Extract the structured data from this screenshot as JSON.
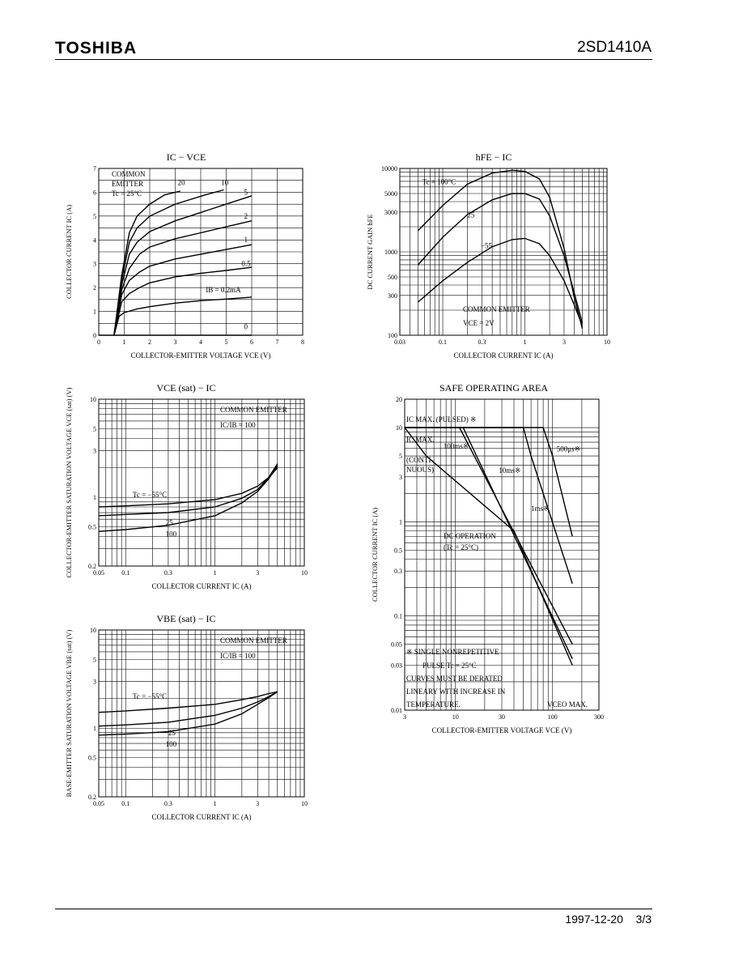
{
  "header": {
    "brand": "TOSHIBA",
    "part_number": "2SD1410A"
  },
  "footer": {
    "date": "1997-12-20",
    "page": "3/3"
  },
  "chart_data": [
    {
      "id": "ic-vce",
      "type": "line",
      "title": "IC − VCE",
      "xlabel": "COLLECTOR-EMITTER VOLTAGE   VCE   (V)",
      "ylabel": "COLLECTOR CURRENT   IC   (A)",
      "xscale": "linear",
      "yscale": "linear",
      "xlim": [
        0,
        8
      ],
      "ylim": [
        0,
        7
      ],
      "xticks": [
        0,
        1,
        2,
        3,
        4,
        5,
        6,
        7,
        8
      ],
      "yticks": [
        0,
        1,
        2,
        3,
        4,
        5,
        6,
        7
      ],
      "grid": true,
      "annotations": [
        "COMMON",
        "EMITTER",
        "Tc = 25°C"
      ],
      "series": [
        {
          "name": "20",
          "x": [
            0.6,
            0.9,
            1.2,
            1.5,
            2.0,
            2.6,
            3.2
          ],
          "y": [
            0,
            2.5,
            4.3,
            5.0,
            5.5,
            5.9,
            6.05
          ]
        },
        {
          "name": "10",
          "x": [
            0.6,
            0.9,
            1.2,
            1.5,
            2.0,
            3.0,
            4.2,
            4.9
          ],
          "y": [
            0,
            2.3,
            3.9,
            4.5,
            5.0,
            5.5,
            5.9,
            6.1
          ]
        },
        {
          "name": "5",
          "x": [
            0.6,
            0.9,
            1.2,
            1.5,
            2.0,
            3.0,
            4.0,
            5.0,
            6.0
          ],
          "y": [
            0,
            2.1,
            3.4,
            3.9,
            4.35,
            4.8,
            5.15,
            5.5,
            5.85
          ]
        },
        {
          "name": "2",
          "x": [
            0.6,
            0.9,
            1.2,
            1.6,
            2.0,
            3.0,
            4.0,
            5.0,
            6.0
          ],
          "y": [
            0,
            1.9,
            2.8,
            3.4,
            3.7,
            4.05,
            4.3,
            4.55,
            4.8
          ]
        },
        {
          "name": "1",
          "x": [
            0.6,
            0.9,
            1.2,
            1.6,
            2.0,
            3.0,
            4.0,
            5.0,
            6.0
          ],
          "y": [
            0,
            1.7,
            2.3,
            2.65,
            2.9,
            3.2,
            3.4,
            3.6,
            3.8
          ]
        },
        {
          "name": "0.5",
          "x": [
            0.6,
            0.9,
            1.2,
            1.6,
            2.0,
            3.0,
            4.0,
            5.0,
            6.0
          ],
          "y": [
            0,
            1.4,
            1.75,
            2.0,
            2.2,
            2.45,
            2.6,
            2.72,
            2.85
          ]
        },
        {
          "name": "IB = 0.2mA",
          "x": [
            0.6,
            0.8,
            1.0,
            1.5,
            2.0,
            3.0,
            4.0,
            5.0,
            6.0
          ],
          "y": [
            0,
            0.8,
            0.95,
            1.1,
            1.2,
            1.35,
            1.45,
            1.52,
            1.6
          ]
        },
        {
          "name": "0",
          "x": [
            0,
            6
          ],
          "y": [
            0,
            0
          ]
        }
      ]
    },
    {
      "id": "hfe-ic",
      "type": "line",
      "title": "hFE − IC",
      "xlabel": "COLLECTOR CURRENT   IC   (A)",
      "ylabel": "DC CURRENT GAIN   hFE",
      "xscale": "log",
      "yscale": "log",
      "xlim": [
        0.03,
        10
      ],
      "ylim": [
        100,
        10000
      ],
      "xticks": [
        0.03,
        0.1,
        0.3,
        1,
        3,
        10
      ],
      "xtick_labels": [
        "0.03",
        "0.1",
        "0.3",
        "1",
        "3",
        "10"
      ],
      "yticks": [
        100,
        300,
        500,
        1000,
        3000,
        5000,
        10000
      ],
      "ytick_labels": [
        "100",
        "300",
        "500",
        "1000",
        "3000",
        "5000",
        "10000"
      ],
      "grid": true,
      "annotations": [
        "COMMON EMITTER",
        "VCE = 2V"
      ],
      "series": [
        {
          "name": "Tc = 100°C",
          "x": [
            0.05,
            0.1,
            0.2,
            0.4,
            0.7,
            1.0,
            1.5,
            2.0,
            3.0,
            4.0,
            5.0
          ],
          "y": [
            1800,
            3600,
            6500,
            8800,
            9500,
            9200,
            7500,
            4500,
            1100,
            280,
            120
          ]
        },
        {
          "name": "25",
          "x": [
            0.05,
            0.1,
            0.2,
            0.4,
            0.7,
            1.0,
            1.5,
            2.0,
            3.0,
            4.0,
            5.0
          ],
          "y": [
            700,
            1500,
            2800,
            4200,
            5000,
            5000,
            4300,
            2700,
            900,
            320,
            140
          ]
        },
        {
          "name": "−55",
          "x": [
            0.05,
            0.1,
            0.2,
            0.4,
            0.7,
            1.0,
            1.5,
            2.0,
            3.0,
            4.0,
            5.0
          ],
          "y": [
            250,
            450,
            750,
            1150,
            1400,
            1450,
            1250,
            900,
            450,
            230,
            130
          ]
        }
      ]
    },
    {
      "id": "vcesat-ic",
      "type": "line",
      "title": "VCE (sat) − IC",
      "xlabel": "COLLECTOR CURRENT   IC   (A)",
      "ylabel": "COLLECTOR-EMITTER SATURATION VOLTAGE   VCE (sat)   (V)",
      "xscale": "log",
      "yscale": "log",
      "xlim": [
        0.05,
        10
      ],
      "ylim": [
        0.2,
        10
      ],
      "xticks": [
        0.05,
        0.1,
        0.3,
        1,
        3,
        10
      ],
      "xtick_labels": [
        "0.05",
        "0.1",
        "0.3",
        "1",
        "3",
        "10"
      ],
      "yticks": [
        0.2,
        0.5,
        1,
        3,
        5,
        10
      ],
      "ytick_labels": [
        "0.2",
        "0.5",
        "1",
        "3",
        "5",
        "10"
      ],
      "grid": true,
      "annotations": [
        "COMMON EMITTER",
        "IC/IB = 100"
      ],
      "series": [
        {
          "name": "Tc = −55°C",
          "x": [
            0.05,
            0.1,
            0.3,
            1,
            2,
            3,
            4,
            5
          ],
          "y": [
            0.8,
            0.82,
            0.86,
            0.95,
            1.1,
            1.3,
            1.6,
            2.0
          ]
        },
        {
          "name": "25",
          "x": [
            0.05,
            0.1,
            0.3,
            1,
            2,
            3,
            4,
            5
          ],
          "y": [
            0.65,
            0.67,
            0.7,
            0.8,
            0.98,
            1.2,
            1.6,
            2.2
          ]
        },
        {
          "name": "100",
          "x": [
            0.05,
            0.1,
            0.3,
            1,
            2,
            3,
            4,
            5
          ],
          "y": [
            0.45,
            0.47,
            0.52,
            0.65,
            0.88,
            1.15,
            1.55,
            2.1
          ]
        }
      ]
    },
    {
      "id": "soa",
      "type": "line",
      "title": "SAFE OPERATING AREA",
      "xlabel": "COLLECTOR-EMITTER VOLTAGE   VCE   (V)",
      "ylabel": "COLLECTOR CURRENT   IC   (A)",
      "xscale": "log",
      "yscale": "log",
      "xlim": [
        3,
        300
      ],
      "ylim": [
        0.01,
        20
      ],
      "xticks": [
        3,
        10,
        30,
        100,
        300
      ],
      "xtick_labels": [
        "3",
        "10",
        "30",
        "100",
        "300"
      ],
      "yticks": [
        0.01,
        0.03,
        0.05,
        0.1,
        0.3,
        0.5,
        1,
        3,
        5,
        10,
        20
      ],
      "ytick_labels": [
        "0.01",
        "0.03",
        "0.05",
        "0.1",
        "0.3",
        "0.5",
        "1",
        "3",
        "5",
        "10",
        "20"
      ],
      "grid": true,
      "annotations": [
        "IC MAX. (PULSED) ※",
        "IC MAX.",
        "(CONTI-",
        "NUOUS)",
        "DC OPERATION",
        "(Tc = 25°C)",
        "※  SINGLE NONREPETITIVE",
        "PULSE Tc = 25°C",
        "CURVES MUST BE DERATED",
        "LINEARY WITH INCREASE IN",
        "TEMPERATURE.",
        "VCEO MAX."
      ],
      "series": [
        {
          "name": "500μs※",
          "x": [
            3,
            80,
            100,
            160
          ],
          "y": [
            10,
            10,
            5,
            0.7
          ]
        },
        {
          "name": "1ms※",
          "x": [
            3,
            50,
            60,
            160
          ],
          "y": [
            10,
            10,
            5,
            0.22
          ]
        },
        {
          "name": "10ms※",
          "x": [
            3,
            12,
            160
          ],
          "y": [
            10,
            10,
            0.035
          ]
        },
        {
          "name": "100ms※",
          "x": [
            3,
            11,
            160
          ],
          "y": [
            10,
            10,
            0.05
          ]
        },
        {
          "name": "DC",
          "x": [
            3,
            5,
            40,
            160
          ],
          "y": [
            10,
            5,
            0.8,
            0.03
          ]
        }
      ]
    },
    {
      "id": "vbesat-ic",
      "type": "line",
      "title": "VBE (sat) − IC",
      "xlabel": "COLLECTOR CURRENT   IC   (A)",
      "ylabel": "BASE-EMITTER SATURATION VOLTAGE   VBE (sat)   (V)",
      "xscale": "log",
      "yscale": "log",
      "xlim": [
        0.05,
        10
      ],
      "ylim": [
        0.2,
        10
      ],
      "xticks": [
        0.05,
        0.1,
        0.3,
        1,
        3,
        10
      ],
      "xtick_labels": [
        "0.05",
        "0.1",
        "0.3",
        "1",
        "3",
        "10"
      ],
      "yticks": [
        0.2,
        0.5,
        1,
        3,
        5,
        10
      ],
      "ytick_labels": [
        "0.2",
        "0.5",
        "1",
        "3",
        "5",
        "10"
      ],
      "grid": true,
      "annotations": [
        "COMMON EMITTER",
        "IC/IB = 100"
      ],
      "series": [
        {
          "name": "Tc = −55°C",
          "x": [
            0.05,
            0.1,
            0.3,
            1,
            2,
            3,
            4,
            5
          ],
          "y": [
            1.45,
            1.5,
            1.6,
            1.75,
            1.95,
            2.1,
            2.25,
            2.35
          ]
        },
        {
          "name": "25",
          "x": [
            0.05,
            0.1,
            0.3,
            1,
            2,
            3,
            4,
            5
          ],
          "y": [
            1.05,
            1.08,
            1.15,
            1.35,
            1.6,
            1.85,
            2.1,
            2.35
          ]
        },
        {
          "name": "100",
          "x": [
            0.05,
            0.1,
            0.3,
            1,
            2,
            3,
            4,
            5
          ],
          "y": [
            0.85,
            0.87,
            0.92,
            1.1,
            1.4,
            1.75,
            2.05,
            2.35
          ]
        }
      ]
    }
  ]
}
